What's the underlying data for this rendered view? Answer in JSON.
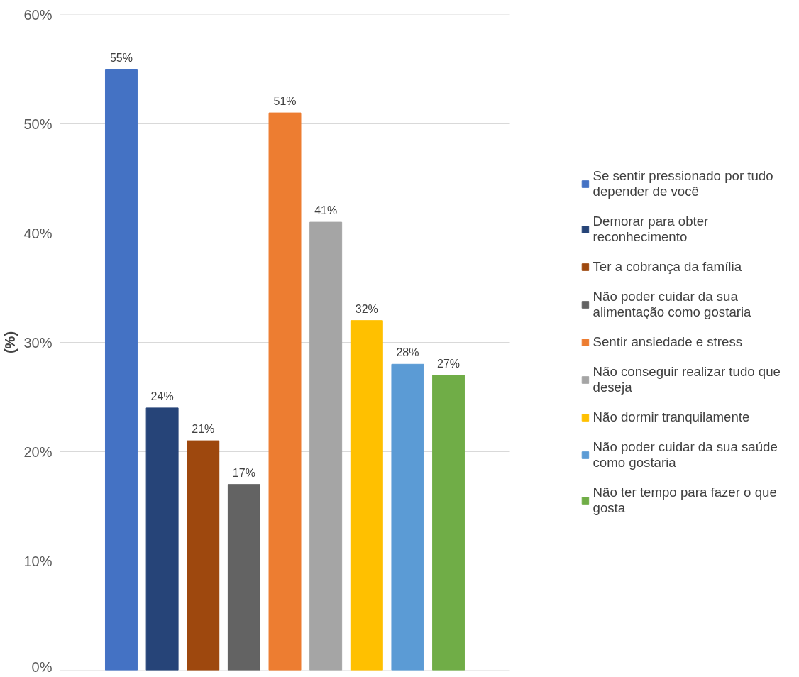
{
  "chart_data": {
    "type": "bar",
    "ylabel": "(%)",
    "categories": [
      null
    ],
    "ylim": [
      0,
      60
    ],
    "yticks": [
      {
        "value": 0,
        "label": "0%"
      },
      {
        "value": 10,
        "label": "10%"
      },
      {
        "value": 20,
        "label": "20%"
      },
      {
        "value": 30,
        "label": "30%"
      },
      {
        "value": 40,
        "label": "40%"
      },
      {
        "value": 50,
        "label": "50%"
      },
      {
        "value": 60,
        "label": "60%"
      }
    ],
    "grid": "y",
    "legend": "right",
    "tick_labels": "y",
    "series": [
      {
        "name": "Se sentir pressionado por tudo depender de você",
        "color": "#4472c4",
        "values": [
          55
        ],
        "value_labels": [
          "55%"
        ]
      },
      {
        "name": "Demorar para obter reconhecimento",
        "color": "#264478",
        "values": [
          24
        ],
        "value_labels": [
          "24%"
        ]
      },
      {
        "name": "Ter a cobrança da família",
        "color": "#9e480e",
        "values": [
          21
        ],
        "value_labels": [
          "21%"
        ]
      },
      {
        "name": "Não poder cuidar da sua alimentação como gostaria",
        "color": "#636363",
        "values": [
          17
        ],
        "value_labels": [
          "17%"
        ]
      },
      {
        "name": "Sentir ansiedade e stress",
        "color": "#ed7d31",
        "values": [
          51
        ],
        "value_labels": [
          "51%"
        ]
      },
      {
        "name": "Não conseguir realizar tudo que deseja",
        "color": "#a5a5a5",
        "values": [
          41
        ],
        "value_labels": [
          "41%"
        ]
      },
      {
        "name": "Não dormir tranquilamente",
        "color": "#ffc000",
        "values": [
          32
        ],
        "value_labels": [
          "32%"
        ]
      },
      {
        "name": "Não poder cuidar da sua saúde como gostaria",
        "color": "#5b9bd5",
        "values": [
          28
        ],
        "value_labels": [
          "28%"
        ]
      },
      {
        "name": "Não ter tempo para fazer o que gosta",
        "color": "#70ad47",
        "values": [
          27
        ],
        "value_labels": [
          "27%"
        ]
      }
    ]
  }
}
